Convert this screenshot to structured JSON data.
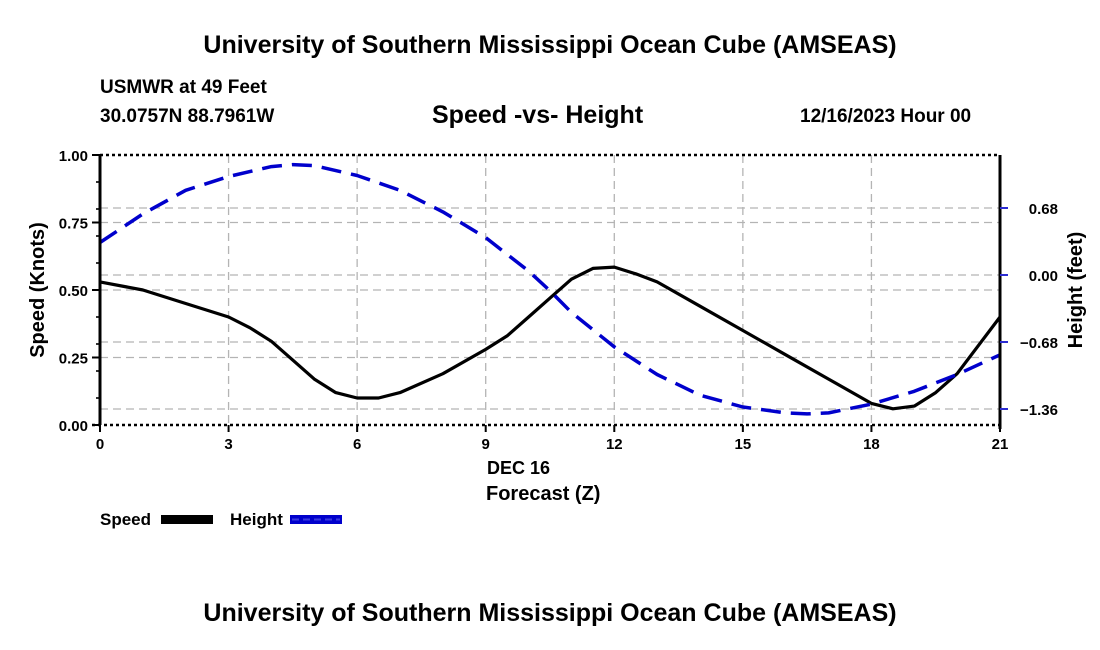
{
  "header": {
    "title": "University of Southern Mississippi Ocean Cube (AMSEAS)",
    "station_line": "USMWR at 49 Feet",
    "coords_line": "30.0757N  88.7961W",
    "date_line": "12/16/2023 Hour 00"
  },
  "footer": {
    "title": "University of Southern Mississippi Ocean Cube (AMSEAS)"
  },
  "legend": {
    "speed_label": "Speed",
    "height_label": "Height"
  },
  "colors": {
    "speed": "#000000",
    "height": "#0000cc",
    "grid": "#b4b4b4"
  },
  "chart_data": {
    "type": "line",
    "title": "Speed -vs- Height",
    "xlabel": "Forecast (Z)",
    "xsublabel": "DEC 16",
    "ylabel": "Speed (Knots)",
    "y2label": "Height (feet)",
    "xlim": [
      0,
      21
    ],
    "ylim": [
      0,
      1
    ],
    "y2lim": [
      -1.5,
      1.2
    ],
    "x_ticks": [
      0,
      3,
      6,
      9,
      12,
      15,
      18,
      21
    ],
    "x_tick_labels": [
      "0",
      "3",
      "6",
      "9",
      "12",
      "15",
      "18",
      "21"
    ],
    "y_ticks": [
      0,
      0.25,
      0.5,
      0.75,
      1.0
    ],
    "y_tick_labels": [
      "0.00",
      "0.25",
      "0.50",
      "0.75",
      "1.00"
    ],
    "y_minor_ticks": [
      0.1,
      0.2,
      0.3,
      0.4,
      0.6,
      0.7,
      0.8,
      0.9
    ],
    "y2_ticks": [
      0.68,
      0.0,
      -0.68,
      -1.36
    ],
    "y2_tick_labels": [
      "0.68",
      "0.00",
      "−0.68",
      "−1.36"
    ],
    "grid": true,
    "legend_position": "bottom-left",
    "series": [
      {
        "name": "Speed",
        "axis": "left",
        "style": "solid",
        "x": [
          0,
          1,
          2,
          3,
          3.5,
          4,
          4.5,
          5,
          5.5,
          6,
          6.5,
          7,
          8,
          9,
          9.5,
          10,
          10.5,
          11,
          11.5,
          12,
          12.5,
          13,
          14,
          15,
          16,
          17,
          18,
          18.5,
          19,
          19.5,
          20,
          21
        ],
        "values": [
          0.53,
          0.5,
          0.45,
          0.4,
          0.36,
          0.31,
          0.24,
          0.17,
          0.12,
          0.1,
          0.1,
          0.12,
          0.19,
          0.28,
          0.33,
          0.4,
          0.47,
          0.54,
          0.58,
          0.585,
          0.56,
          0.53,
          0.44,
          0.35,
          0.26,
          0.17,
          0.08,
          0.06,
          0.07,
          0.12,
          0.19,
          0.4
        ]
      },
      {
        "name": "Height",
        "axis": "right",
        "style": "dashed",
        "x": [
          0,
          1,
          2,
          3,
          4,
          4.5,
          5,
          6,
          7,
          8,
          9,
          10,
          10.5,
          11,
          12,
          13,
          14,
          15,
          16,
          16.5,
          17,
          18,
          19,
          20,
          21
        ],
        "values": [
          0.33,
          0.62,
          0.86,
          1.0,
          1.1,
          1.12,
          1.11,
          1.01,
          0.86,
          0.64,
          0.38,
          0.04,
          -0.16,
          -0.38,
          -0.73,
          -1.01,
          -1.22,
          -1.34,
          -1.4,
          -1.41,
          -1.4,
          -1.31,
          -1.18,
          -1.01,
          -0.81
        ]
      }
    ]
  }
}
